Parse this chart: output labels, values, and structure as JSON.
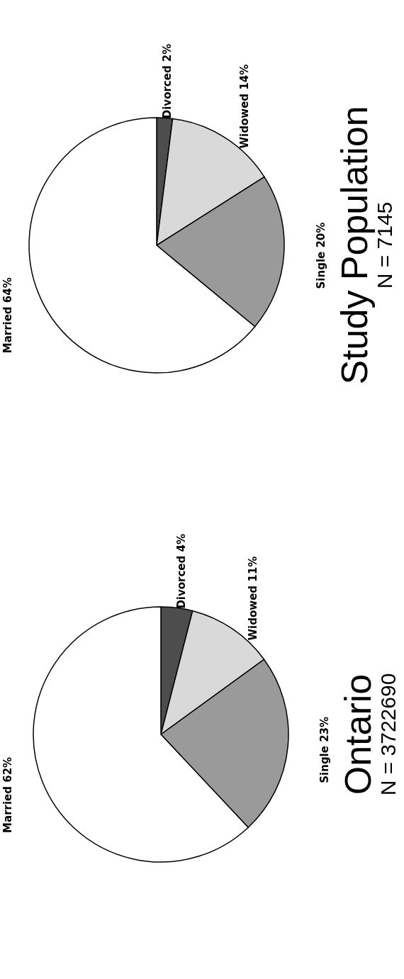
{
  "chart_data": [
    {
      "type": "pie",
      "title": "Ontario",
      "subtitle": "N = 3722690",
      "categories": [
        "Divorced",
        "Widowed",
        "Single",
        "Married"
      ],
      "values": [
        4,
        11,
        23,
        62
      ],
      "value_labels": [
        "4%",
        "11%",
        "23%",
        "62%"
      ],
      "colors": [
        "#4d4d4d",
        "#d9d9d9",
        "#9a9a9a",
        "#ffffff"
      ]
    },
    {
      "type": "pie",
      "title": "Study Population",
      "subtitle": "N = 7145",
      "categories": [
        "Divorced",
        "Widowed",
        "Single",
        "Married"
      ],
      "values": [
        2,
        14,
        20,
        64
      ],
      "value_labels": [
        "2%",
        "14%",
        "20%",
        "64%"
      ],
      "colors": [
        "#4d4d4d",
        "#d9d9d9",
        "#9a9a9a",
        "#ffffff"
      ]
    }
  ]
}
